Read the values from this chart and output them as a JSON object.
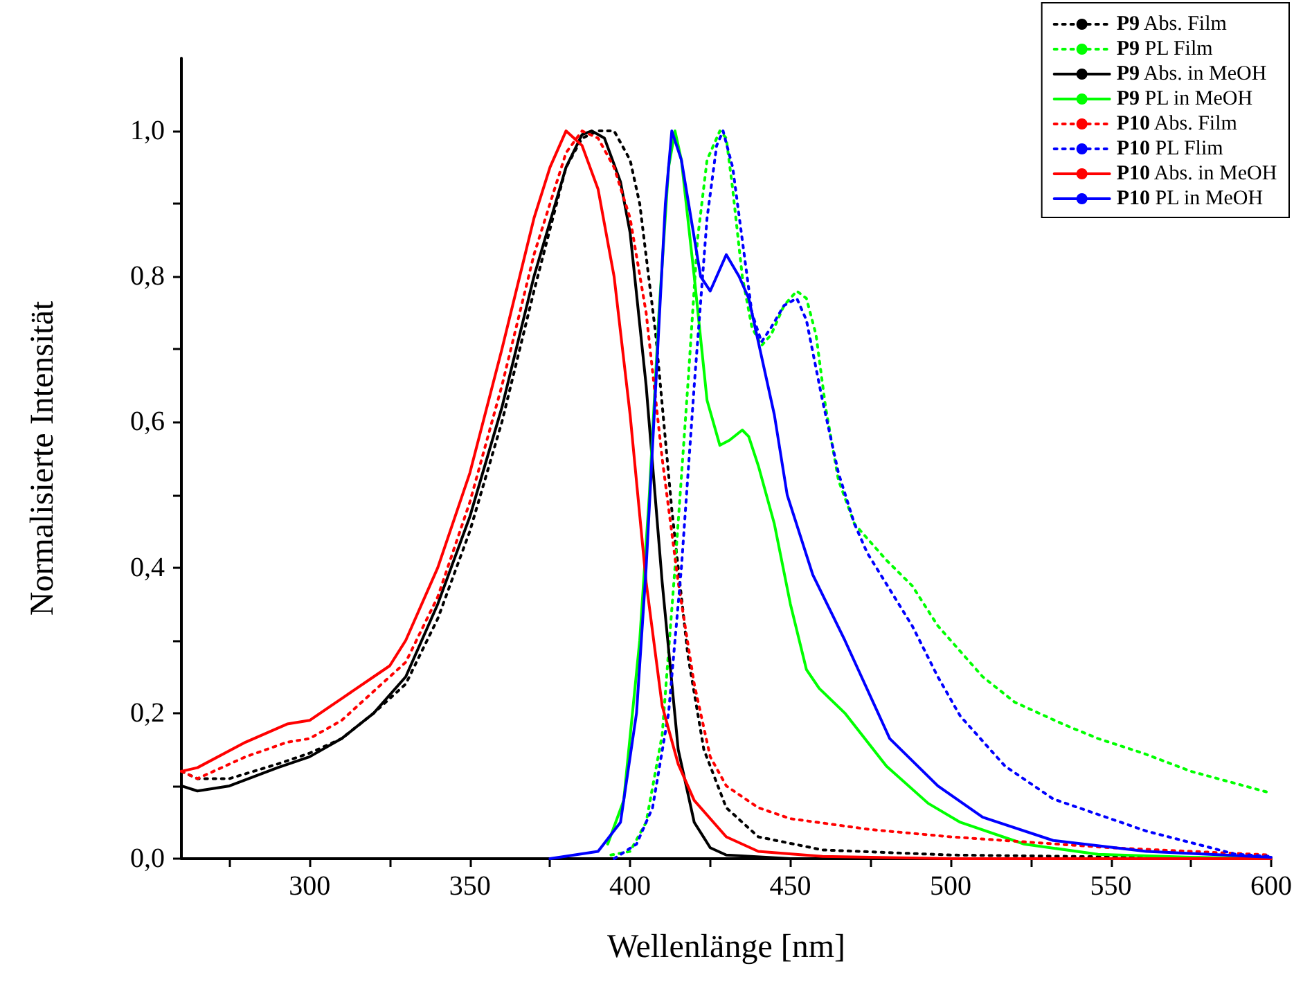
{
  "chart_data": {
    "type": "line",
    "xlabel": "Wellenlänge [nm]",
    "ylabel": "Normalisierte Intensität",
    "xlim": [
      260,
      600
    ],
    "ylim": [
      0,
      1.1
    ],
    "xticks": [
      {
        "value": 275,
        "label": null
      },
      300,
      {
        "value": 325,
        "label": null
      },
      350,
      {
        "value": 375,
        "label": null
      },
      400,
      {
        "value": 425,
        "label": null
      },
      450,
      {
        "value": 475,
        "label": null
      },
      500,
      {
        "value": 525,
        "label": null
      },
      550,
      {
        "value": 575,
        "label": null
      },
      600
    ],
    "yticks": [
      {
        "value": 0,
        "label": "0,0"
      },
      {
        "value": 0.1,
        "label": null
      },
      {
        "value": 0.2,
        "label": "0,2"
      },
      {
        "value": 0.3,
        "label": null
      },
      {
        "value": 0.4,
        "label": "0,4"
      },
      {
        "value": 0.5,
        "label": null
      },
      {
        "value": 0.6,
        "label": "0,6"
      },
      {
        "value": 0.7,
        "label": null
      },
      {
        "value": 0.8,
        "label": "0,8"
      },
      {
        "value": 0.9,
        "label": null
      },
      {
        "value": 1.0,
        "label": "1,0"
      }
    ],
    "grid": false,
    "legend": "top right",
    "marker": "none",
    "series": [
      {
        "name": "P9 Abs. Film",
        "color": "#000000",
        "line_style": "dotted",
        "x": [
          260,
          265,
          275,
          290,
          300,
          310,
          320,
          330,
          340,
          350,
          360,
          370,
          380,
          385,
          390,
          395,
          400,
          403,
          408,
          413,
          418,
          423,
          430,
          440,
          460,
          500,
          600
        ],
        "values": [
          0.12,
          0.11,
          0.11,
          0.13,
          0.145,
          0.165,
          0.2,
          0.24,
          0.33,
          0.45,
          0.6,
          0.78,
          0.95,
          0.99,
          1.0,
          1.0,
          0.96,
          0.9,
          0.72,
          0.48,
          0.28,
          0.15,
          0.07,
          0.03,
          0.012,
          0.005,
          0.0
        ]
      },
      {
        "name": "P9 PL Film",
        "color": "#00ff00",
        "line_style": "dotted",
        "x": [
          394,
          400,
          405,
          410,
          414,
          418,
          421,
          424,
          428,
          430,
          432,
          435,
          438,
          441,
          444,
          448,
          452,
          455,
          458,
          461,
          465,
          470,
          474,
          480,
          488,
          496,
          503,
          510,
          520,
          535,
          546,
          560,
          575,
          600
        ],
        "values": [
          0.005,
          0.01,
          0.05,
          0.17,
          0.4,
          0.65,
          0.85,
          0.96,
          1.0,
          0.99,
          0.92,
          0.8,
          0.73,
          0.705,
          0.72,
          0.76,
          0.78,
          0.77,
          0.72,
          0.62,
          0.52,
          0.46,
          0.44,
          0.41,
          0.375,
          0.32,
          0.285,
          0.25,
          0.215,
          0.185,
          0.165,
          0.145,
          0.12,
          0.09
        ]
      },
      {
        "name": "P9 Abs. in MeOH",
        "color": "#000000",
        "line_style": "solid",
        "x": [
          260,
          265,
          275,
          290,
          300,
          310,
          320,
          330,
          340,
          350,
          360,
          370,
          380,
          385,
          388,
          392,
          397,
          400,
          405,
          410,
          415,
          420,
          425,
          430,
          450,
          600
        ],
        "values": [
          0.1,
          0.093,
          0.1,
          0.125,
          0.14,
          0.165,
          0.2,
          0.25,
          0.35,
          0.47,
          0.62,
          0.8,
          0.95,
          0.995,
          1.0,
          0.99,
          0.93,
          0.86,
          0.65,
          0.38,
          0.15,
          0.05,
          0.015,
          0.005,
          0.0,
          0.0
        ]
      },
      {
        "name": "P9 PL in MeOH",
        "color": "#00ff00",
        "line_style": "solid",
        "x": [
          393,
          398,
          403,
          406,
          409,
          412,
          414,
          416,
          420,
          424,
          428,
          431,
          435,
          437,
          440,
          445,
          450,
          455,
          459,
          467,
          480,
          493,
          503,
          523,
          546,
          575,
          600
        ],
        "values": [
          0.02,
          0.08,
          0.3,
          0.5,
          0.75,
          0.95,
          1.0,
          0.96,
          0.8,
          0.63,
          0.568,
          0.575,
          0.589,
          0.58,
          0.54,
          0.46,
          0.35,
          0.26,
          0.234,
          0.2,
          0.127,
          0.076,
          0.05,
          0.02,
          0.006,
          0.002,
          0.0
        ]
      },
      {
        "name": "P10 Abs. Film",
        "color": "#ff0000",
        "line_style": "dotted",
        "x": [
          260,
          265,
          280,
          293,
          300,
          310,
          320,
          330,
          340,
          350,
          360,
          370,
          380,
          385,
          390,
          395,
          400,
          405,
          410,
          415,
          420,
          425,
          430,
          440,
          450,
          475,
          500,
          550,
          600
        ],
        "values": [
          0.12,
          0.11,
          0.14,
          0.16,
          0.165,
          0.19,
          0.23,
          0.27,
          0.36,
          0.49,
          0.65,
          0.83,
          0.97,
          1.0,
          0.99,
          0.95,
          0.88,
          0.75,
          0.55,
          0.38,
          0.24,
          0.14,
          0.1,
          0.07,
          0.055,
          0.04,
          0.03,
          0.015,
          0.005
        ]
      },
      {
        "name": "P10 PL Flim",
        "color": "#0000ff",
        "line_style": "dotted",
        "x": [
          395,
          402,
          407,
          412,
          416,
          420,
          424,
          427,
          429,
          432,
          435,
          438,
          441,
          444,
          448,
          452,
          455,
          460,
          465,
          470,
          474,
          481,
          488,
          496,
          503,
          517,
          532,
          561,
          589,
          600
        ],
        "values": [
          0.0,
          0.02,
          0.07,
          0.2,
          0.4,
          0.65,
          0.88,
          0.98,
          1.0,
          0.95,
          0.85,
          0.75,
          0.71,
          0.73,
          0.76,
          0.77,
          0.74,
          0.63,
          0.53,
          0.46,
          0.42,
          0.37,
          0.32,
          0.25,
          0.196,
          0.127,
          0.082,
          0.038,
          0.006,
          0.003
        ]
      },
      {
        "name": "P10 Abs. in MeOH",
        "color": "#ff0000",
        "line_style": "solid",
        "x": [
          260,
          265,
          280,
          293,
          300,
          310,
          320,
          325,
          330,
          340,
          350,
          360,
          370,
          375,
          380,
          385,
          390,
          395,
          400,
          405,
          410,
          415,
          420,
          430,
          440,
          460,
          500,
          600
        ],
        "values": [
          0.12,
          0.125,
          0.16,
          0.185,
          0.19,
          0.22,
          0.25,
          0.265,
          0.3,
          0.4,
          0.53,
          0.7,
          0.88,
          0.95,
          1.0,
          0.98,
          0.92,
          0.8,
          0.61,
          0.38,
          0.21,
          0.13,
          0.08,
          0.03,
          0.01,
          0.003,
          0.0,
          0.0
        ]
      },
      {
        "name": "P10 PL in MeOH",
        "color": "#0000ff",
        "line_style": "solid",
        "x": [
          375,
          390,
          397,
          402,
          405,
          408,
          411,
          413,
          416,
          419,
          422,
          425,
          427,
          430,
          434,
          437,
          440,
          445,
          449,
          457,
          467,
          481,
          496,
          510,
          532,
          561,
          600
        ],
        "values": [
          0.0,
          0.01,
          0.05,
          0.2,
          0.4,
          0.65,
          0.9,
          1.0,
          0.96,
          0.88,
          0.8,
          0.78,
          0.8,
          0.83,
          0.8,
          0.77,
          0.71,
          0.61,
          0.5,
          0.39,
          0.3,
          0.165,
          0.1,
          0.057,
          0.025,
          0.01,
          0.002
        ]
      }
    ]
  }
}
